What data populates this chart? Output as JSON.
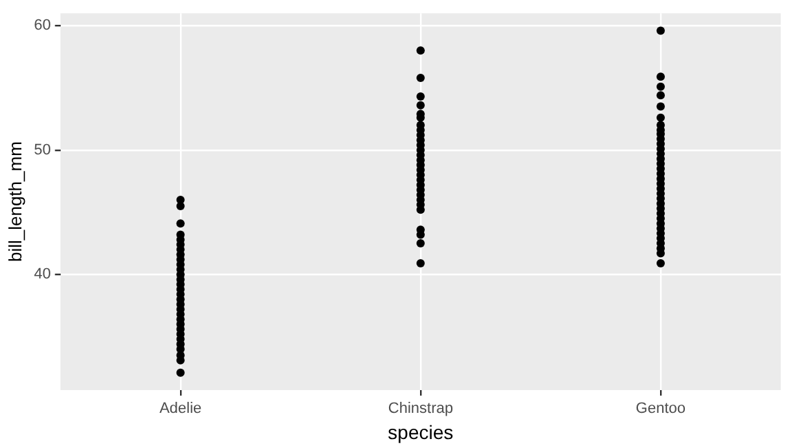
{
  "chart_data": {
    "type": "scatter",
    "xlabel": "species",
    "ylabel": "bill_length_mm",
    "categories": [
      "Adelie",
      "Chinstrap",
      "Gentoo"
    ],
    "ylim": [
      30.7,
      61.0
    ],
    "yticks": [
      40,
      50,
      60
    ],
    "grid": true,
    "legend": false,
    "marker": "circle",
    "series": [
      {
        "color": "#000000",
        "x": [
          "Adelie",
          "Adelie",
          "Adelie",
          "Adelie",
          "Adelie",
          "Adelie",
          "Adelie",
          "Adelie",
          "Adelie",
          "Adelie",
          "Adelie",
          "Adelie",
          "Adelie",
          "Adelie",
          "Adelie",
          "Adelie",
          "Adelie",
          "Adelie",
          "Adelie",
          "Adelie",
          "Adelie",
          "Adelie",
          "Adelie",
          "Adelie",
          "Adelie",
          "Adelie",
          "Adelie",
          "Adelie",
          "Adelie",
          "Adelie"
        ],
        "values": [
          32.1,
          33.1,
          33.5,
          34.0,
          34.4,
          34.8,
          35.2,
          35.6,
          36.0,
          36.4,
          36.8,
          37.2,
          37.6,
          38.0,
          38.4,
          38.8,
          39.2,
          39.6,
          40.0,
          40.4,
          40.8,
          41.2,
          41.6,
          42.0,
          42.4,
          42.8,
          43.2,
          44.1,
          45.5,
          46.0
        ]
      },
      {
        "color": "#000000",
        "x": [
          "Chinstrap",
          "Chinstrap",
          "Chinstrap",
          "Chinstrap",
          "Chinstrap",
          "Chinstrap",
          "Chinstrap",
          "Chinstrap",
          "Chinstrap",
          "Chinstrap",
          "Chinstrap",
          "Chinstrap",
          "Chinstrap",
          "Chinstrap",
          "Chinstrap",
          "Chinstrap",
          "Chinstrap",
          "Chinstrap",
          "Chinstrap",
          "Chinstrap",
          "Chinstrap",
          "Chinstrap",
          "Chinstrap",
          "Chinstrap",
          "Chinstrap",
          "Chinstrap",
          "Chinstrap",
          "Chinstrap"
        ],
        "values": [
          40.9,
          42.5,
          43.2,
          43.6,
          45.2,
          45.6,
          46.0,
          46.4,
          46.8,
          47.2,
          47.6,
          48.0,
          48.4,
          48.8,
          49.2,
          49.6,
          50.0,
          50.4,
          50.8,
          51.2,
          51.6,
          52.0,
          52.6,
          52.9,
          53.6,
          54.3,
          55.8,
          58.0
        ]
      },
      {
        "color": "#000000",
        "x": [
          "Gentoo",
          "Gentoo",
          "Gentoo",
          "Gentoo",
          "Gentoo",
          "Gentoo",
          "Gentoo",
          "Gentoo",
          "Gentoo",
          "Gentoo",
          "Gentoo",
          "Gentoo",
          "Gentoo",
          "Gentoo",
          "Gentoo",
          "Gentoo",
          "Gentoo",
          "Gentoo",
          "Gentoo",
          "Gentoo",
          "Gentoo",
          "Gentoo",
          "Gentoo",
          "Gentoo",
          "Gentoo",
          "Gentoo",
          "Gentoo",
          "Gentoo",
          "Gentoo",
          "Gentoo",
          "Gentoo",
          "Gentoo",
          "Gentoo",
          "Gentoo"
        ],
        "values": [
          40.9,
          41.7,
          42.1,
          42.5,
          42.9,
          43.3,
          43.7,
          44.1,
          44.5,
          44.9,
          45.3,
          45.7,
          46.1,
          46.5,
          46.9,
          47.3,
          47.7,
          48.1,
          48.5,
          48.9,
          49.3,
          49.7,
          50.1,
          50.5,
          50.9,
          51.3,
          51.6,
          52.0,
          52.6,
          53.5,
          54.4,
          55.1,
          55.9,
          59.6
        ]
      }
    ]
  }
}
